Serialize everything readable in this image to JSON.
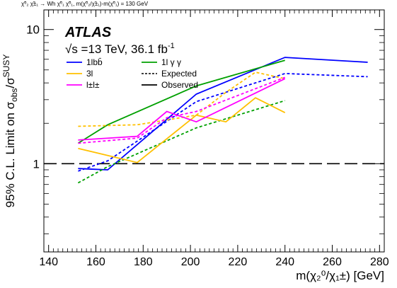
{
  "chart_data": {
    "type": "line",
    "process_label": "χ̃⁰₂ χ̃±₁ → Wh χ̃⁰₁ χ̃⁰₁, m(χ̃⁰₂/χ̃±₁)-m(χ̃⁰₁) = 130 GeV",
    "experiment": "ATLAS",
    "energy_label": "√s =13 TeV, 36.1 fb",
    "energy_label_sup": "-1",
    "ylabel_main": "95% C.L. Limit on σ",
    "ylabel_sub": "obs",
    "ylabel_slash": "/σ",
    "ylabel_sup": "SUSY",
    "xlabel": "m(χ₂⁰/χ₁±) [GeV]",
    "xlim": [
      138,
      282
    ],
    "ylim": [
      0.22,
      14
    ],
    "yscale": "log",
    "xticks": [
      140,
      160,
      180,
      200,
      220,
      240,
      260,
      280
    ],
    "xtick_labels": [
      "140",
      "160",
      "180",
      "200",
      "220",
      "240",
      "260",
      "280"
    ],
    "yticks": [
      1,
      10
    ],
    "ytick_labels": [
      "1",
      "10"
    ],
    "reference_line": {
      "y": 1,
      "style": "long-dash"
    },
    "legend": [
      {
        "label": "1lbb̄",
        "color": "#0000ff",
        "style": "solid"
      },
      {
        "label": "1l γ γ",
        "color": "#00a000",
        "style": "solid"
      },
      {
        "label": "3l",
        "color": "#ffc000",
        "style": "solid"
      },
      {
        "label": "Expected",
        "color": "#000000",
        "style": "dotted"
      },
      {
        "label": "l±l±",
        "color": "#ff00ff",
        "style": "solid"
      },
      {
        "label": "Observed",
        "color": "#000000",
        "style": "solid"
      }
    ],
    "series": [
      {
        "name": "1lbb̄",
        "kind": "observed",
        "color": "#0000ff",
        "x": [
          152.5,
          165,
          202.5,
          240,
          275
        ],
        "y": [
          0.92,
          0.9,
          3.3,
          6.2,
          5.7
        ]
      },
      {
        "name": "1lbb̄",
        "kind": "expected",
        "color": "#0000ff",
        "x": [
          152.5,
          165,
          202.5,
          240,
          275
        ],
        "y": [
          0.88,
          1.05,
          2.9,
          4.7,
          4.45
        ]
      },
      {
        "name": "1l γ γ",
        "kind": "observed",
        "color": "#00a000",
        "x": [
          152.5,
          165,
          202.5,
          240
        ],
        "y": [
          1.42,
          1.95,
          3.8,
          5.9
        ]
      },
      {
        "name": "1l γ γ",
        "kind": "expected",
        "color": "#00a000",
        "x": [
          152.5,
          165,
          202.5,
          240
        ],
        "y": [
          0.72,
          0.95,
          1.85,
          2.95
        ]
      },
      {
        "name": "3l",
        "kind": "observed",
        "color": "#ffc000",
        "x": [
          152.5,
          177.5,
          202.5,
          215,
          227.5,
          240
        ],
        "y": [
          1.3,
          1.02,
          2.3,
          2.05,
          3.1,
          2.4
        ]
      },
      {
        "name": "3l",
        "kind": "expected",
        "color": "#ffc000",
        "x": [
          152.5,
          177.5,
          202.5,
          215,
          227.5,
          240
        ],
        "y": [
          1.9,
          1.95,
          2.3,
          3.4,
          4.8,
          4.3
        ]
      },
      {
        "name": "l±l±",
        "kind": "observed",
        "color": "#ff00ff",
        "x": [
          152.5,
          177.5,
          190,
          202.5,
          240
        ],
        "y": [
          1.5,
          1.6,
          2.45,
          2.05,
          4.3
        ]
      },
      {
        "name": "l±l±",
        "kind": "expected",
        "color": "#ff00ff",
        "x": [
          152.5,
          177.5,
          190,
          202.5,
          240
        ],
        "y": [
          1.42,
          1.55,
          2.2,
          2.45,
          4.4
        ]
      }
    ]
  }
}
